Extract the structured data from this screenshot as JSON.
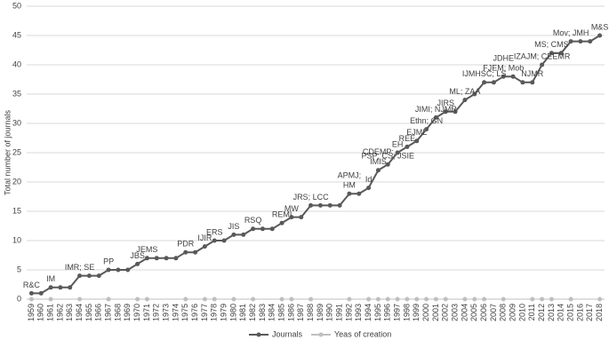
{
  "chart_data": {
    "type": "line",
    "y_label": "Total number of journals",
    "categories": [
      "1959",
      "1960",
      "1961",
      "1962",
      "1963",
      "1964",
      "1965",
      "1966",
      "1967",
      "1968",
      "1969",
      "1970",
      "1971",
      "1972",
      "1973",
      "1974",
      "1975",
      "1976",
      "1977",
      "1978",
      "1979",
      "1980",
      "1981",
      "1982",
      "1983",
      "1984",
      "1985",
      "1986",
      "1987",
      "1988",
      "1989",
      "1990",
      "1991",
      "1992",
      "1993",
      "1994",
      "1995",
      "1996",
      "1997",
      "1998",
      "1999",
      "2000",
      "2001",
      "2002",
      "2003",
      "2004",
      "2005",
      "2006",
      "2007",
      "2008",
      "2009",
      "2010",
      "2011",
      "2012",
      "2013",
      "2014",
      "2015",
      "2016",
      "2017",
      "2018"
    ],
    "series": [
      {
        "name": "Journals",
        "color": "#595959",
        "values": [
          1,
          1,
          2,
          2,
          2,
          4,
          4,
          4,
          5,
          5,
          5,
          6,
          7,
          7,
          7,
          7,
          8,
          8,
          9,
          10,
          10,
          11,
          11,
          12,
          12,
          12,
          13,
          14,
          14,
          16,
          16,
          16,
          16,
          18,
          18,
          19,
          22,
          23,
          25,
          26,
          27,
          29,
          31,
          32,
          32,
          34,
          35,
          37,
          37,
          38,
          38,
          37,
          37,
          40,
          42,
          42,
          44,
          44,
          44,
          45
        ]
      },
      {
        "name": "Yeas of creation",
        "color": "#bfbfbf",
        "values": [
          0,
          null,
          0,
          null,
          null,
          0,
          null,
          null,
          0,
          null,
          null,
          0,
          0,
          null,
          null,
          null,
          0,
          null,
          0,
          0,
          null,
          0,
          null,
          0,
          null,
          null,
          0,
          0,
          null,
          0,
          null,
          null,
          null,
          0,
          null,
          0,
          0,
          0,
          0,
          0,
          0,
          0,
          0,
          0,
          null,
          0,
          0,
          0,
          null,
          0,
          null,
          null,
          0,
          0,
          0,
          null,
          0,
          null,
          null,
          0
        ]
      }
    ],
    "annotations": [
      {
        "year": "1959",
        "lines": [
          "R&C"
        ]
      },
      {
        "year": "1961",
        "lines": [
          "IM"
        ]
      },
      {
        "year": "1964",
        "lines": [
          "IMR; SE"
        ]
      },
      {
        "year": "1967",
        "lines": [
          "PP"
        ]
      },
      {
        "year": "1970",
        "lines": [
          "JBS"
        ]
      },
      {
        "year": "1971",
        "lines": [
          "JEMS"
        ]
      },
      {
        "year": "1975",
        "lines": [
          "PDR"
        ]
      },
      {
        "year": "1977",
        "lines": [
          "IJIR"
        ]
      },
      {
        "year": "1978",
        "lines": [
          "ERS"
        ]
      },
      {
        "year": "1980",
        "lines": [
          "JIS"
        ]
      },
      {
        "year": "1982",
        "lines": [
          "RSQ"
        ]
      },
      {
        "year": "1985",
        "lines": [
          "REMI"
        ]
      },
      {
        "year": "1986",
        "lines": [
          "MW"
        ]
      },
      {
        "year": "1988",
        "lines": [
          "JRS; LCC"
        ]
      },
      {
        "year": "1992",
        "lines": [
          "APMJ;",
          "HM"
        ]
      },
      {
        "year": "1994",
        "lines": [
          "Id"
        ]
      },
      {
        "year": "1995",
        "lines": [
          "CDEMP;",
          "IMIS"
        ]
      },
      {
        "year": "1996",
        "lines": [
          "PSP;  CS; JSIE"
        ]
      },
      {
        "year": "1997",
        "lines": [
          "EH"
        ]
      },
      {
        "year": "1998",
        "lines": [
          "REE"
        ]
      },
      {
        "year": "1999",
        "lines": [
          "EJML"
        ]
      },
      {
        "year": "2000",
        "lines": [
          "Ethn; GN"
        ]
      },
      {
        "year": "2001",
        "lines": [
          "JIMI; NJMR"
        ]
      },
      {
        "year": "2002",
        "lines": [
          "JIRS"
        ]
      },
      {
        "year": "2004",
        "lines": [
          "ML; ZAA"
        ]
      },
      {
        "year": "2006",
        "lines": [
          "IJMHSC; LS"
        ]
      },
      {
        "year": "2008",
        "lines": [
          "JDHE",
          "FJEM; Mob"
        ]
      },
      {
        "year": "2011",
        "lines": [
          "NJMR"
        ]
      },
      {
        "year": "2012",
        "lines": [
          "IZAJM; CEEMR"
        ]
      },
      {
        "year": "2013",
        "lines": [
          "MS; CMS"
        ]
      },
      {
        "year": "2015",
        "lines": [
          "Mov; JMH"
        ]
      },
      {
        "year": "2018",
        "lines": [
          "M&S"
        ]
      }
    ],
    "ylim": [
      0,
      50
    ],
    "yticks": [
      0,
      5,
      10,
      15,
      20,
      25,
      30,
      35,
      40,
      45,
      50
    ],
    "grid": true,
    "legend": "bottom"
  }
}
